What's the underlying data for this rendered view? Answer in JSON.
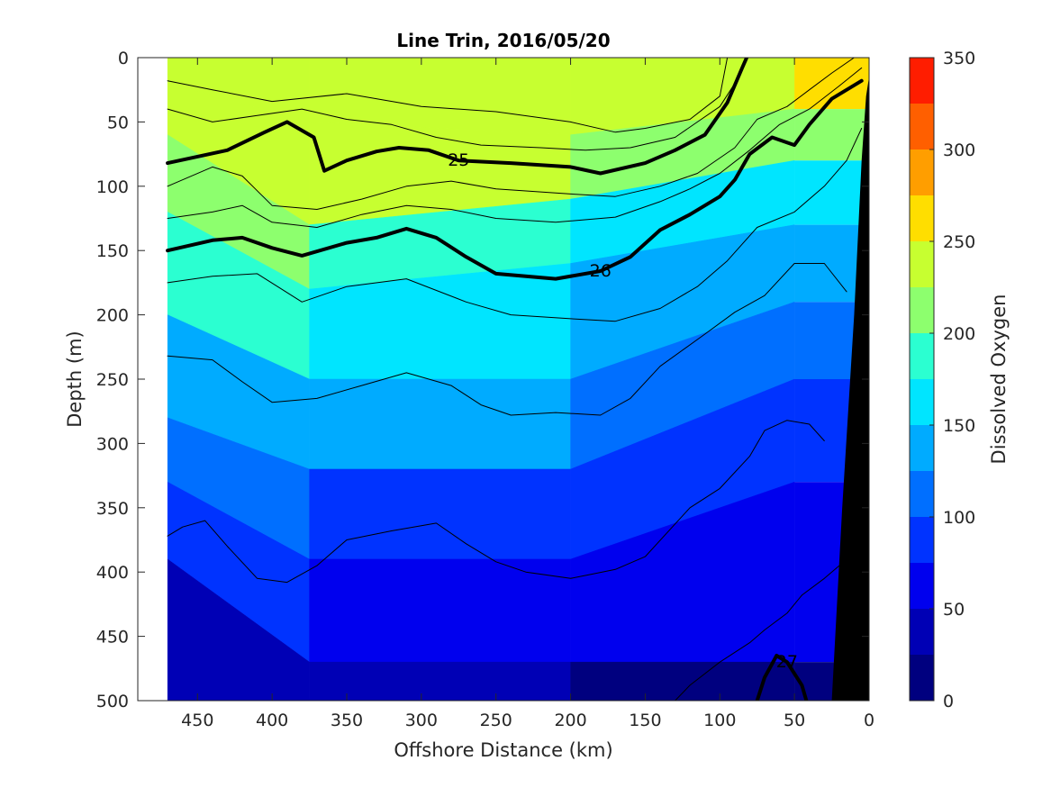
{
  "chart_data": {
    "type": "filled-contour",
    "title": "Line Trin, 2016/05/20",
    "xlabel": "Offshore Distance (km)",
    "ylabel": "Depth (m)",
    "xlim": [
      490,
      0
    ],
    "ylim": [
      0,
      500
    ],
    "x_reversed": true,
    "y_reversed": true,
    "x_ticks": [
      450,
      400,
      350,
      300,
      250,
      200,
      150,
      100,
      50,
      0
    ],
    "y_ticks": [
      0,
      50,
      100,
      150,
      200,
      250,
      300,
      350,
      400,
      450,
      500
    ],
    "colorbar": {
      "label": "Dissolved Oxygen",
      "range": [
        0,
        350
      ],
      "ticks": [
        0,
        50,
        100,
        150,
        200,
        250,
        300,
        350
      ],
      "levels": [
        0,
        25,
        50,
        75,
        100,
        125,
        150,
        175,
        200,
        225,
        250,
        275,
        300,
        325,
        350
      ],
      "colors": [
        "#00007f",
        "#0000b5",
        "#0000ee",
        "#0033ff",
        "#006fff",
        "#00abff",
        "#00e5ff",
        "#2bffd1",
        "#8dff6e",
        "#c7ff30",
        "#ffde00",
        "#ff9e00",
        "#ff5f00",
        "#ff1d00",
        "#c50000"
      ]
    },
    "data_x_range_km": [
      470,
      0
    ],
    "oxygen_depth_bands": [
      {
        "x_km": 470,
        "top_m": [
          0,
          20,
          60,
          120,
          200,
          280,
          330,
          390
        ],
        "levels": [
          262,
          237,
          212,
          187,
          137,
          112,
          87,
          37
        ]
      },
      {
        "x_km": 375,
        "top_m": [
          0,
          50,
          130,
          180,
          250,
          320,
          390,
          470
        ],
        "levels": [
          237,
          262,
          212,
          187,
          162,
          112,
          87,
          37
        ]
      },
      {
        "x_km": 200,
        "top_m": [
          0,
          60,
          110,
          160,
          250,
          320,
          390,
          470
        ],
        "levels": [
          237,
          212,
          187,
          137,
          112,
          87,
          62,
          37
        ]
      },
      {
        "x_km": 50,
        "top_m": [
          0,
          40,
          80,
          130,
          190,
          250,
          330,
          470
        ],
        "levels": [
          262,
          212,
          162,
          137,
          112,
          87,
          62,
          12
        ]
      }
    ],
    "density_contours": [
      {
        "label": "25",
        "bold": true,
        "points": [
          [
            470,
            82
          ],
          [
            430,
            72
          ],
          [
            405,
            58
          ],
          [
            390,
            50
          ],
          [
            372,
            62
          ],
          [
            365,
            88
          ],
          [
            350,
            80
          ],
          [
            330,
            73
          ],
          [
            315,
            70
          ],
          [
            295,
            72
          ],
          [
            275,
            80
          ],
          [
            240,
            82
          ],
          [
            200,
            85
          ],
          [
            180,
            90
          ],
          [
            150,
            82
          ],
          [
            130,
            72
          ],
          [
            110,
            60
          ],
          [
            95,
            35
          ],
          [
            85,
            8
          ],
          [
            82,
            0
          ]
        ]
      },
      {
        "label": "26",
        "bold": true,
        "points": [
          [
            470,
            150
          ],
          [
            440,
            142
          ],
          [
            420,
            140
          ],
          [
            400,
            148
          ],
          [
            380,
            154
          ],
          [
            350,
            144
          ],
          [
            330,
            140
          ],
          [
            310,
            133
          ],
          [
            290,
            140
          ],
          [
            270,
            155
          ],
          [
            250,
            168
          ],
          [
            210,
            172
          ],
          [
            180,
            166
          ],
          [
            160,
            155
          ],
          [
            140,
            134
          ],
          [
            120,
            122
          ],
          [
            100,
            108
          ],
          [
            90,
            95
          ],
          [
            80,
            75
          ],
          [
            65,
            62
          ],
          [
            50,
            68
          ],
          [
            40,
            52
          ],
          [
            25,
            32
          ],
          [
            5,
            18
          ]
        ]
      },
      {
        "label": "27",
        "bold": true,
        "points": [
          [
            75,
            500
          ],
          [
            70,
            482
          ],
          [
            62,
            465
          ],
          [
            55,
            470
          ],
          [
            45,
            488
          ],
          [
            42,
            500
          ]
        ]
      },
      {
        "label": "",
        "bold": false,
        "points": [
          [
            470,
            18
          ],
          [
            440,
            25
          ],
          [
            400,
            34
          ],
          [
            350,
            28
          ],
          [
            300,
            38
          ],
          [
            250,
            42
          ],
          [
            200,
            50
          ],
          [
            170,
            58
          ],
          [
            150,
            55
          ],
          [
            120,
            48
          ],
          [
            100,
            30
          ],
          [
            95,
            0
          ]
        ]
      },
      {
        "label": "",
        "bold": false,
        "points": [
          [
            470,
            40
          ],
          [
            440,
            50
          ],
          [
            410,
            45
          ],
          [
            380,
            40
          ],
          [
            350,
            48
          ],
          [
            320,
            52
          ],
          [
            290,
            62
          ],
          [
            260,
            68
          ],
          [
            220,
            70
          ],
          [
            190,
            72
          ],
          [
            160,
            70
          ],
          [
            130,
            62
          ],
          [
            115,
            50
          ],
          [
            100,
            38
          ],
          [
            90,
            20
          ],
          [
            82,
            0
          ]
        ]
      },
      {
        "label": "",
        "bold": false,
        "points": [
          [
            470,
            100
          ],
          [
            440,
            85
          ],
          [
            420,
            92
          ],
          [
            400,
            115
          ],
          [
            370,
            118
          ],
          [
            340,
            110
          ],
          [
            310,
            100
          ],
          [
            280,
            96
          ],
          [
            250,
            102
          ],
          [
            200,
            106
          ],
          [
            170,
            108
          ],
          [
            140,
            100
          ],
          [
            115,
            90
          ],
          [
            90,
            70
          ],
          [
            75,
            48
          ],
          [
            55,
            38
          ],
          [
            40,
            25
          ],
          [
            25,
            12
          ],
          [
            10,
            0
          ]
        ]
      },
      {
        "label": "",
        "bold": false,
        "points": [
          [
            470,
            125
          ],
          [
            440,
            120
          ],
          [
            420,
            115
          ],
          [
            400,
            128
          ],
          [
            370,
            132
          ],
          [
            340,
            122
          ],
          [
            310,
            115
          ],
          [
            280,
            118
          ],
          [
            250,
            125
          ],
          [
            210,
            128
          ],
          [
            170,
            124
          ],
          [
            140,
            112
          ],
          [
            120,
            102
          ],
          [
            100,
            90
          ],
          [
            80,
            72
          ],
          [
            60,
            52
          ],
          [
            40,
            40
          ],
          [
            20,
            22
          ],
          [
            5,
            8
          ]
        ]
      },
      {
        "label": "",
        "bold": false,
        "points": [
          [
            470,
            175
          ],
          [
            440,
            170
          ],
          [
            410,
            168
          ],
          [
            380,
            190
          ],
          [
            350,
            178
          ],
          [
            310,
            172
          ],
          [
            270,
            190
          ],
          [
            240,
            200
          ],
          [
            200,
            203
          ],
          [
            170,
            205
          ],
          [
            140,
            195
          ],
          [
            115,
            178
          ],
          [
            95,
            158
          ],
          [
            75,
            132
          ],
          [
            50,
            120
          ],
          [
            30,
            100
          ],
          [
            15,
            80
          ],
          [
            5,
            55
          ]
        ]
      },
      {
        "label": "",
        "bold": false,
        "points": [
          [
            470,
            232
          ],
          [
            440,
            235
          ],
          [
            420,
            252
          ],
          [
            400,
            268
          ],
          [
            370,
            265
          ],
          [
            340,
            255
          ],
          [
            310,
            245
          ],
          [
            280,
            255
          ],
          [
            260,
            270
          ],
          [
            240,
            278
          ],
          [
            210,
            276
          ],
          [
            180,
            278
          ],
          [
            160,
            265
          ],
          [
            140,
            240
          ],
          [
            110,
            215
          ],
          [
            90,
            198
          ],
          [
            70,
            185
          ],
          [
            50,
            160
          ],
          [
            30,
            160
          ],
          [
            15,
            182
          ]
        ]
      },
      {
        "label": "",
        "bold": false,
        "points": [
          [
            470,
            372
          ],
          [
            460,
            365
          ],
          [
            445,
            360
          ],
          [
            430,
            380
          ],
          [
            410,
            405
          ],
          [
            390,
            408
          ],
          [
            370,
            395
          ],
          [
            350,
            375
          ],
          [
            320,
            368
          ],
          [
            290,
            362
          ],
          [
            270,
            378
          ],
          [
            250,
            392
          ],
          [
            230,
            400
          ],
          [
            200,
            405
          ],
          [
            170,
            398
          ],
          [
            150,
            388
          ],
          [
            120,
            350
          ],
          [
            100,
            335
          ],
          [
            80,
            310
          ],
          [
            70,
            290
          ],
          [
            55,
            282
          ],
          [
            40,
            285
          ],
          [
            30,
            298
          ]
        ]
      },
      {
        "label": "",
        "bold": false,
        "points": [
          [
            130,
            500
          ],
          [
            120,
            488
          ],
          [
            100,
            470
          ],
          [
            80,
            455
          ],
          [
            70,
            445
          ],
          [
            55,
            432
          ],
          [
            45,
            418
          ],
          [
            30,
            405
          ],
          [
            20,
            395
          ]
        ]
      }
    ],
    "seafloor": {
      "color": "#000000",
      "points": [
        [
          0,
          15
        ],
        [
          0,
          500
        ],
        [
          25,
          500
        ],
        [
          18,
          350
        ],
        [
          10,
          200
        ],
        [
          5,
          80
        ],
        [
          2,
          30
        ]
      ]
    }
  }
}
